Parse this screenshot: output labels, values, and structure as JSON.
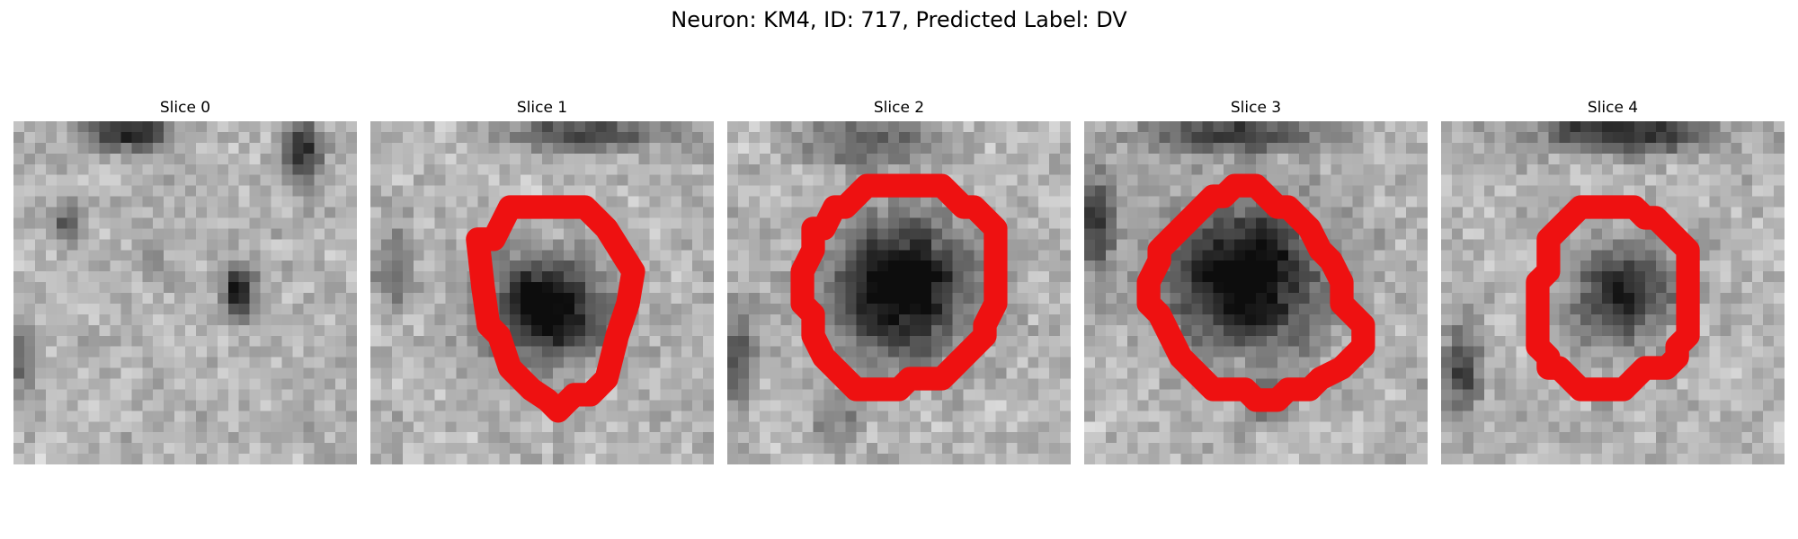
{
  "title": "Neuron: KM4, ID: 717, Predicted Label: DV",
  "outline_color": "#ee1111",
  "panels": [
    {
      "label": "Slice 0",
      "has_outline": false
    },
    {
      "label": "Slice 1",
      "has_outline": true
    },
    {
      "label": "Slice 2",
      "has_outline": true
    },
    {
      "label": "Slice 3",
      "has_outline": true
    },
    {
      "label": "Slice 4",
      "has_outline": true
    }
  ]
}
